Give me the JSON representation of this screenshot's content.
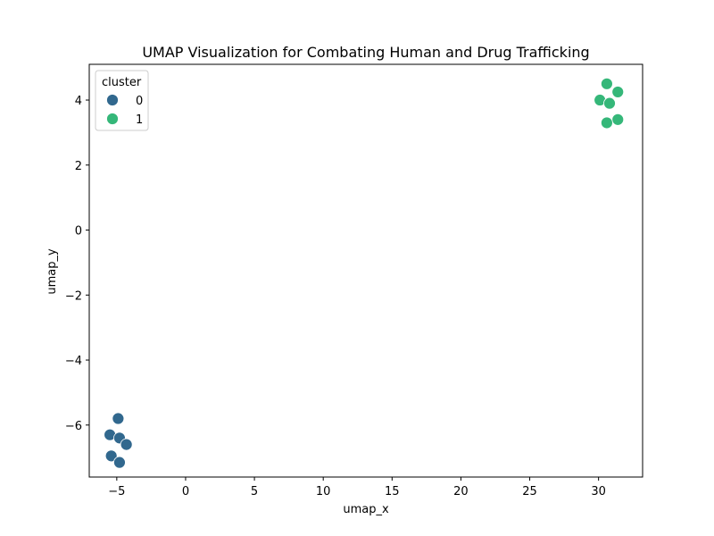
{
  "chart_data": {
    "type": "scatter",
    "title": "UMAP Visualization for Combating Human and Drug Trafficking",
    "xlabel": "umap_x",
    "ylabel": "umap_y",
    "xlim": [
      -7,
      33.2
    ],
    "ylim": [
      -7.6,
      5.1
    ],
    "xticks": [
      -5,
      0,
      5,
      10,
      15,
      20,
      25,
      30
    ],
    "yticks": [
      -6,
      -4,
      -2,
      0,
      2,
      4
    ],
    "grid": false,
    "legend": {
      "title": "cluster",
      "position": "top-left"
    },
    "series": [
      {
        "name": "0",
        "color": "#31688e",
        "points": [
          {
            "x": -4.9,
            "y": -5.8
          },
          {
            "x": -5.5,
            "y": -6.3
          },
          {
            "x": -4.8,
            "y": -6.4
          },
          {
            "x": -4.3,
            "y": -6.6
          },
          {
            "x": -5.4,
            "y": -6.95
          },
          {
            "x": -4.8,
            "y": -7.15
          }
        ]
      },
      {
        "name": "1",
        "color": "#35b779",
        "points": [
          {
            "x": 30.6,
            "y": 4.5
          },
          {
            "x": 31.4,
            "y": 4.25
          },
          {
            "x": 30.1,
            "y": 4.0
          },
          {
            "x": 30.8,
            "y": 3.9
          },
          {
            "x": 31.4,
            "y": 3.4
          },
          {
            "x": 30.6,
            "y": 3.3
          }
        ]
      }
    ]
  }
}
